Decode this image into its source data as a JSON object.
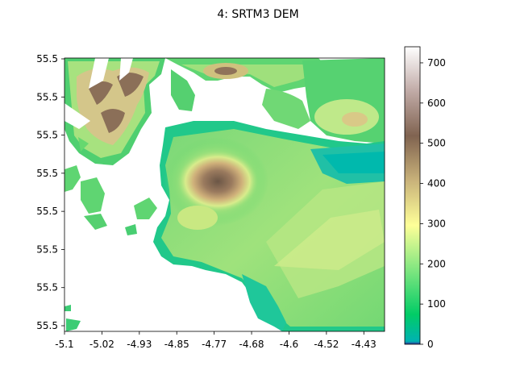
{
  "chart_data": {
    "type": "heatmap",
    "title": "4: SRTM3 DEM",
    "xlabel": "",
    "ylabel": "",
    "x_ticks": [
      "-5.1",
      "-5.02",
      "-4.93",
      "-4.85",
      "-4.77",
      "-4.68",
      "-4.6",
      "-4.52",
      "-4.43"
    ],
    "x_tick_values": [
      -5.1,
      -5.017,
      -4.934,
      -4.851,
      -4.768,
      -4.685,
      -4.602,
      -4.519,
      -4.436
    ],
    "xlim": [
      -5.1,
      -4.39
    ],
    "y_ticks": [
      "55.5",
      "55.5",
      "55.5",
      "55.5",
      "55.5",
      "55.5",
      "55.5",
      "55.5"
    ],
    "colorbar": {
      "ticks": [
        "0",
        "100",
        "200",
        "300",
        "400",
        "500",
        "600",
        "700"
      ],
      "tick_values": [
        0,
        100,
        200,
        300,
        400,
        500,
        600,
        700
      ],
      "range": [
        0,
        740
      ],
      "colormap": "terrain"
    },
    "features": {
      "max_elevation_m": 730,
      "main_peak": "central massif near x = -4.78",
      "water": "white (no data / sea)"
    }
  },
  "colors": {
    "water": "#ffffff",
    "low": "#00b2b2",
    "lowland": "#33cc66",
    "mid": "#ccee88",
    "high": "#9a7a5e",
    "peak": "#ffffff"
  }
}
